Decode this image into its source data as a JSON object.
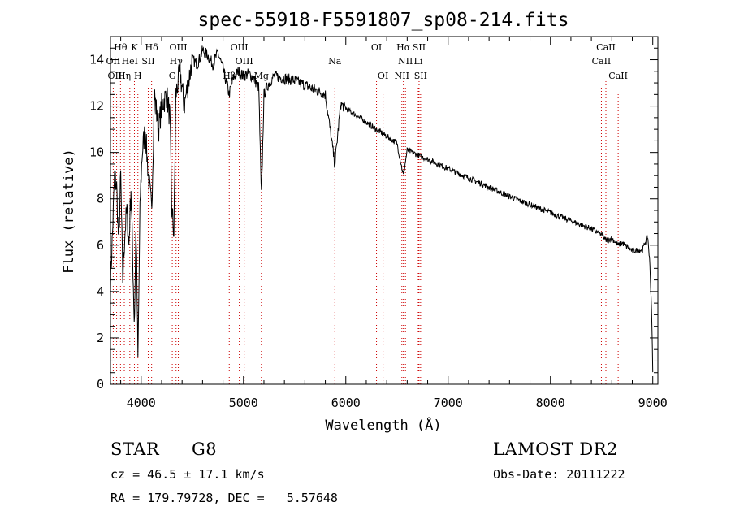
{
  "chart_data": {
    "type": "line",
    "title": "spec-55918-F5591807_sp08-214.fits",
    "xlabel": "Wavelength (Å)",
    "ylabel": "Flux (relative)",
    "xlim": [
      3700,
      9050
    ],
    "ylim": [
      0,
      15
    ],
    "xticks": [
      4000,
      5000,
      6000,
      7000,
      8000,
      9000
    ],
    "yticks": [
      0,
      2,
      4,
      6,
      8,
      10,
      12,
      14
    ],
    "grid": false,
    "line_color": "#000000",
    "marker_color": "#cc0000",
    "line_markers": [
      {
        "label": "Hθ",
        "wavelength": 3798,
        "row": 0
      },
      {
        "label": "K",
        "wavelength": 3934,
        "row": 0
      },
      {
        "label": "Hδ",
        "wavelength": 4102,
        "row": 0
      },
      {
        "label": "OIII",
        "wavelength": 4363,
        "row": 0
      },
      {
        "label": "OIII",
        "wavelength": 4959,
        "row": 0
      },
      {
        "label": "OI",
        "wavelength": 6300,
        "row": 0
      },
      {
        "label": "Hα",
        "wavelength": 6563,
        "row": 0
      },
      {
        "label": "SII",
        "wavelength": 6716,
        "row": 0
      },
      {
        "label": "CaII",
        "wavelength": 8542,
        "row": 0
      },
      {
        "label": "OII",
        "wavelength": 3727,
        "row": 1
      },
      {
        "label": "HeI",
        "wavelength": 3889,
        "row": 1
      },
      {
        "label": "SII",
        "wavelength": 4069,
        "row": 1
      },
      {
        "label": "Hγ",
        "wavelength": 4341,
        "row": 1
      },
      {
        "label": "OIII",
        "wavelength": 5007,
        "row": 1
      },
      {
        "label": "Na",
        "wavelength": 5893,
        "row": 1
      },
      {
        "label": "NII",
        "wavelength": 6583,
        "row": 1
      },
      {
        "label": "Li",
        "wavelength": 6708,
        "row": 1
      },
      {
        "label": "CaII",
        "wavelength": 8498,
        "row": 1
      },
      {
        "label": "OIII",
        "wavelength": 3760,
        "row": 2
      },
      {
        "label": "Hη",
        "wavelength": 3835,
        "row": 2
      },
      {
        "label": "H",
        "wavelength": 3968,
        "row": 2
      },
      {
        "label": "G",
        "wavelength": 4304,
        "row": 2
      },
      {
        "label": "Hβ",
        "wavelength": 4861,
        "row": 2
      },
      {
        "label": "Mg",
        "wavelength": 5175,
        "row": 2
      },
      {
        "label": "OI",
        "wavelength": 6364,
        "row": 2
      },
      {
        "label": "NII",
        "wavelength": 6548,
        "row": 2
      },
      {
        "label": "SII",
        "wavelength": 6731,
        "row": 2
      },
      {
        "label": "CaII",
        "wavelength": 8662,
        "row": 2
      }
    ],
    "anchors": [
      [
        3700,
        4.4
      ],
      [
        3720,
        6.5
      ],
      [
        3740,
        9.0
      ],
      [
        3760,
        8.5
      ],
      [
        3780,
        6.0
      ],
      [
        3800,
        9.0
      ],
      [
        3820,
        4.5
      ],
      [
        3840,
        6.5
      ],
      [
        3860,
        7.5
      ],
      [
        3880,
        6.0
      ],
      [
        3900,
        8.5
      ],
      [
        3934,
        2.5
      ],
      [
        3950,
        7.0
      ],
      [
        3968,
        1.0
      ],
      [
        3990,
        8.0
      ],
      [
        4010,
        10.0
      ],
      [
        4040,
        11.0
      ],
      [
        4070,
        9.0
      ],
      [
        4102,
        7.5
      ],
      [
        4130,
        12.5
      ],
      [
        4170,
        11.0
      ],
      [
        4200,
        12.0
      ],
      [
        4250,
        12.5
      ],
      [
        4280,
        11.5
      ],
      [
        4300,
        7.5
      ],
      [
        4320,
        6.5
      ],
      [
        4340,
        12.5
      ],
      [
        4380,
        13.5
      ],
      [
        4420,
        12.0
      ],
      [
        4460,
        13.0
      ],
      [
        4500,
        14.0
      ],
      [
        4550,
        13.8
      ],
      [
        4600,
        14.4
      ],
      [
        4650,
        14.2
      ],
      [
        4700,
        13.8
      ],
      [
        4750,
        14.3
      ],
      [
        4800,
        13.6
      ],
      [
        4861,
        12.5
      ],
      [
        4900,
        13.2
      ],
      [
        4950,
        13.5
      ],
      [
        5000,
        13.3
      ],
      [
        5050,
        13.4
      ],
      [
        5100,
        13.2
      ],
      [
        5150,
        12.8
      ],
      [
        5175,
        8.0
      ],
      [
        5200,
        12.5
      ],
      [
        5250,
        13.0
      ],
      [
        5300,
        13.3
      ],
      [
        5400,
        13.2
      ],
      [
        5500,
        13.1
      ],
      [
        5600,
        12.9
      ],
      [
        5700,
        12.7
      ],
      [
        5800,
        12.5
      ],
      [
        5893,
        9.5
      ],
      [
        5950,
        12.1
      ],
      [
        6000,
        11.9
      ],
      [
        6100,
        11.6
      ],
      [
        6200,
        11.3
      ],
      [
        6300,
        11.0
      ],
      [
        6400,
        10.7
      ],
      [
        6500,
        10.4
      ],
      [
        6563,
        9.0
      ],
      [
        6600,
        10.1
      ],
      [
        6700,
        9.9
      ],
      [
        6800,
        9.7
      ],
      [
        7000,
        9.3
      ],
      [
        7200,
        8.9
      ],
      [
        7400,
        8.5
      ],
      [
        7600,
        8.1
      ],
      [
        7800,
        7.75
      ],
      [
        8000,
        7.4
      ],
      [
        8200,
        7.05
      ],
      [
        8400,
        6.7
      ],
      [
        8500,
        6.45
      ],
      [
        8542,
        6.2
      ],
      [
        8600,
        6.3
      ],
      [
        8662,
        6.0
      ],
      [
        8700,
        6.1
      ],
      [
        8800,
        5.75
      ],
      [
        8900,
        5.8
      ],
      [
        8950,
        6.4
      ],
      [
        8970,
        5.3
      ],
      [
        8990,
        3.0
      ],
      [
        9000,
        0.5
      ]
    ]
  },
  "info": {
    "object_class": "STAR",
    "subclass": "G8",
    "survey": "LAMOST DR2",
    "cz": "cz = 46.5 ± 17.1 km/s",
    "obs_date": "Obs-Date: 20111222",
    "radec": "RA = 179.79728, DEC =   5.57648"
  }
}
